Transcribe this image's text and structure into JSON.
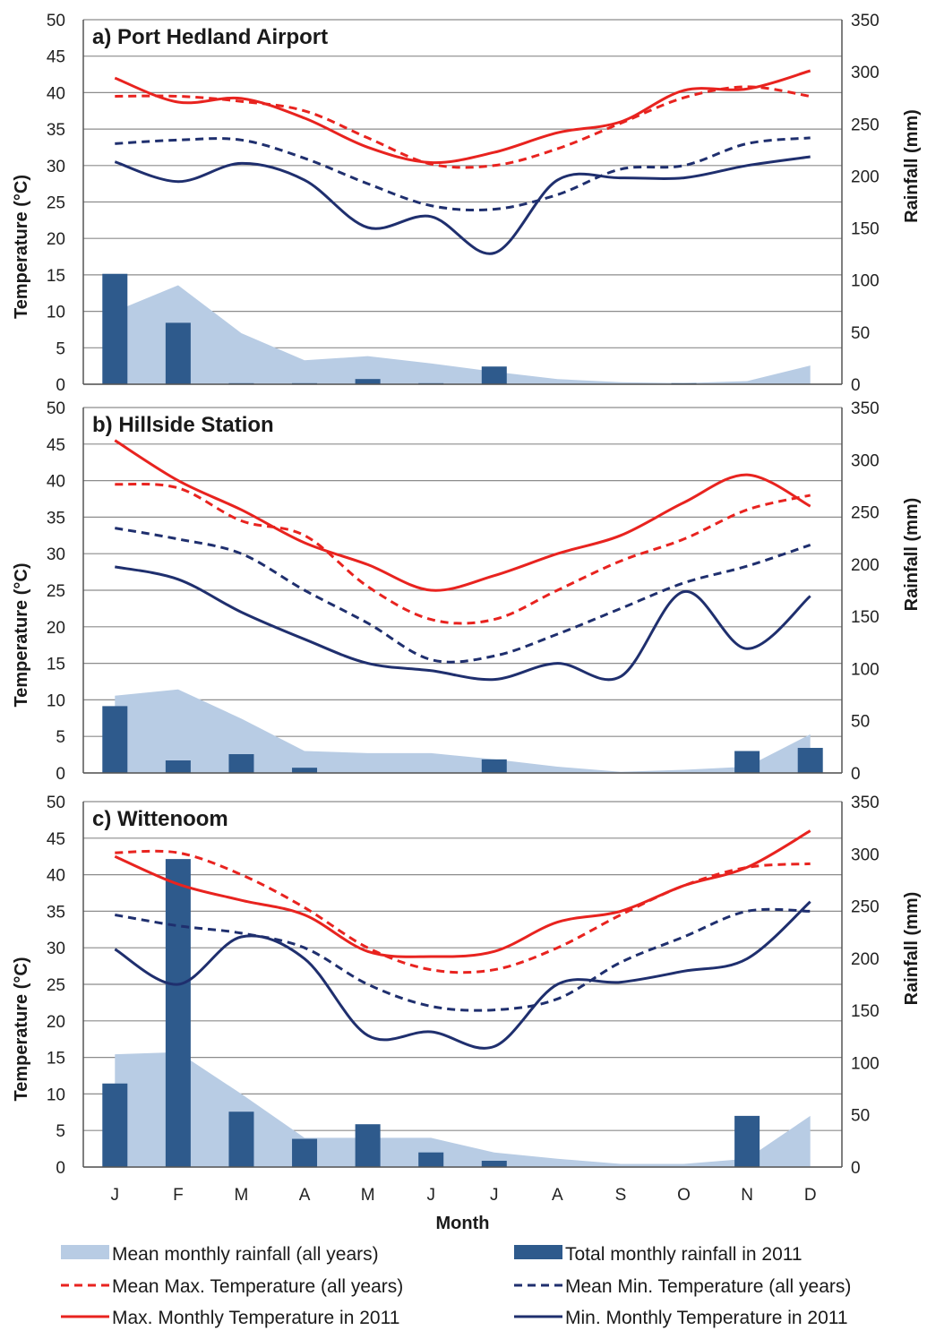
{
  "chart_data": [
    {
      "type": "bar",
      "title": "a) Port Hedland Airport",
      "ylabel": "Temperature (°C)",
      "y2label": "Rainfall (mm)",
      "ylim": [
        0,
        50
      ],
      "y2lim": [
        0,
        350
      ],
      "categories": [
        "J",
        "F",
        "M",
        "A",
        "M",
        "J",
        "J",
        "A",
        "S",
        "O",
        "N",
        "D"
      ],
      "mean_rainfall": [
        70,
        95,
        49,
        23,
        27,
        20,
        12,
        5,
        2,
        1,
        3,
        18
      ],
      "total_rainfall_2011": [
        106,
        59,
        1,
        1,
        5,
        1,
        17,
        0,
        0,
        1,
        0,
        0
      ],
      "mean_max_temp": [
        39.5,
        39.5,
        38.8,
        37.5,
        33.8,
        30.2,
        30.0,
        32.3,
        35.8,
        39.3,
        40.8,
        39.5
      ],
      "mean_min_temp": [
        33.0,
        33.5,
        33.5,
        31.0,
        27.5,
        24.5,
        24.0,
        26.0,
        29.5,
        30.0,
        33.0,
        33.8
      ],
      "max_temp_2011": [
        42.0,
        38.7,
        39.2,
        36.5,
        32.5,
        30.4,
        31.8,
        34.5,
        36.0,
        40.3,
        40.5,
        43.0
      ],
      "min_temp_2011": [
        30.5,
        27.8,
        30.3,
        28.0,
        21.5,
        23.0,
        18.0,
        28.0,
        28.3,
        28.3,
        30.0,
        31.2
      ]
    },
    {
      "type": "bar",
      "title": "b) Hillside Station",
      "ylabel": "Temperature (°C)",
      "y2label": "Rainfall (mm)",
      "ylim": [
        0,
        50
      ],
      "y2lim": [
        0,
        350
      ],
      "categories": [
        "J",
        "F",
        "M",
        "A",
        "M",
        "J",
        "J",
        "A",
        "S",
        "O",
        "N",
        "D"
      ],
      "mean_rainfall": [
        74,
        80,
        52,
        21,
        19,
        19,
        13,
        6,
        1,
        3,
        6,
        37
      ],
      "total_rainfall_2011": [
        64,
        12,
        18,
        5,
        0,
        0,
        13,
        0,
        0,
        0,
        21,
        24
      ],
      "mean_max_temp": [
        39.5,
        39.0,
        34.5,
        32.5,
        25.5,
        21.0,
        21.0,
        25.0,
        29.0,
        32.0,
        36.0,
        38.0
      ],
      "mean_min_temp": [
        33.5,
        32.0,
        30.0,
        25.0,
        20.5,
        15.5,
        16.0,
        19.0,
        22.5,
        26.0,
        28.3,
        31.2
      ],
      "max_temp_2011": [
        45.5,
        40.0,
        36.0,
        31.5,
        28.5,
        25.0,
        27.0,
        30.0,
        32.5,
        37.0,
        40.8,
        36.5
      ],
      "min_temp_2011": [
        28.2,
        26.5,
        22.0,
        18.3,
        15.0,
        14.0,
        12.8,
        15.0,
        13.2,
        24.8,
        17.0,
        24.2
      ]
    },
    {
      "type": "bar",
      "title": "c) Wittenoom",
      "ylabel": "Temperature (°C)",
      "y2label": "Rainfall (mm)",
      "xlabel": "Month",
      "ylim": [
        0,
        50
      ],
      "y2lim": [
        0,
        350
      ],
      "categories": [
        "J",
        "F",
        "M",
        "A",
        "M",
        "J",
        "J",
        "A",
        "S",
        "O",
        "N",
        "D"
      ],
      "mean_rainfall": [
        108,
        110,
        70,
        28,
        28,
        28,
        14,
        8,
        3,
        3,
        8,
        49
      ],
      "total_rainfall_2011": [
        80,
        295,
        53,
        27,
        41,
        14,
        6,
        0,
        0,
        0,
        49,
        0
      ],
      "mean_max_temp": [
        43.0,
        43.0,
        40.0,
        35.5,
        30.0,
        27.0,
        27.0,
        30.0,
        34.5,
        38.5,
        41.0,
        41.5
      ],
      "mean_min_temp": [
        34.5,
        33.0,
        32.0,
        30.0,
        25.0,
        22.0,
        21.5,
        23.0,
        28.0,
        31.5,
        35.0,
        35.0
      ],
      "max_temp_2011": [
        42.5,
        38.7,
        36.5,
        34.5,
        29.5,
        28.8,
        29.5,
        33.5,
        35.0,
        38.5,
        41.0,
        46.0
      ],
      "min_temp_2011": [
        29.8,
        25.0,
        31.5,
        28.5,
        18.0,
        18.5,
        16.5,
        25.0,
        25.3,
        26.8,
        28.5,
        36.3
      ]
    }
  ],
  "x_ticks": [
    "J",
    "F",
    "M",
    "A",
    "M",
    "J",
    "J",
    "A",
    "S",
    "O",
    "N",
    "D"
  ],
  "y_ticks": [
    "0",
    "5",
    "10",
    "15",
    "20",
    "25",
    "30",
    "35",
    "40",
    "45",
    "50"
  ],
  "y2_ticks": [
    "0",
    "50",
    "100",
    "150",
    "200",
    "250",
    "300",
    "350"
  ],
  "xlabel": "Month",
  "legend": [
    {
      "label": "Mean monthly rainfall (all years)",
      "kind": "area",
      "color": "#b8cce4"
    },
    {
      "label": "Total monthly rainfall in 2011",
      "kind": "bar",
      "color": "#2e5a8c"
    },
    {
      "label": "Mean Max. Temperature (all years)",
      "kind": "dashed",
      "color": "#e8231f"
    },
    {
      "label": "Mean Min. Temperature (all years)",
      "kind": "dashed",
      "color": "#1f2f6e"
    },
    {
      "label": "Max. Monthly Temperature in 2011",
      "kind": "solid",
      "color": "#e8231f"
    },
    {
      "label": "Min. Monthly Temperature in 2011",
      "kind": "solid",
      "color": "#1f2f6e"
    }
  ],
  "colors": {
    "mean_rainfall": "#b8cce4",
    "total_rainfall": "#2e5a8c",
    "max_temp": "#e8231f",
    "min_temp": "#1f2f6e",
    "grid": "#8c8c8c"
  }
}
